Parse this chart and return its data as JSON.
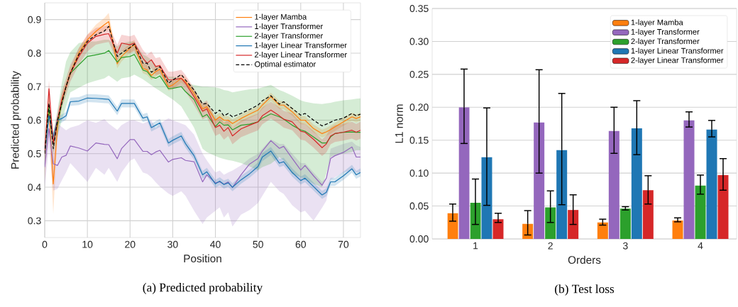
{
  "chart_data": [
    {
      "type": "line",
      "xlabel": "Position",
      "ylabel": "Predicted probability",
      "annotations": [
        "(a) Predicted probability"
      ],
      "x": [
        0,
        1,
        2,
        3,
        4,
        5,
        6,
        8,
        10,
        12,
        14,
        15,
        17,
        18,
        20,
        21,
        23,
        24,
        25,
        26,
        27,
        29,
        30,
        32,
        33,
        35,
        37,
        38,
        40,
        41,
        42,
        43,
        44,
        46,
        48,
        50,
        51,
        53,
        55,
        56,
        58,
        60,
        61,
        63,
        65,
        66,
        67,
        68,
        70,
        72,
        73,
        74
      ],
      "xlim": [
        0,
        74
      ],
      "xticks": [
        0,
        10,
        20,
        30,
        40,
        50,
        60,
        70
      ],
      "ylim": [
        0.25,
        0.95
      ],
      "yticks": [
        0.3,
        0.4,
        0.5,
        0.6,
        0.7,
        0.8,
        0.9
      ],
      "grid": true,
      "legend": "top right",
      "series": [
        {
          "name": "1-layer Mamba",
          "color": "#ff7f0e",
          "values": [
            0.5,
            0.64,
            0.41,
            0.58,
            0.66,
            0.7,
            0.74,
            0.8,
            0.84,
            0.865,
            0.885,
            0.894,
            0.768,
            0.79,
            0.815,
            0.826,
            0.755,
            0.75,
            0.733,
            0.745,
            0.752,
            0.7,
            0.705,
            0.725,
            0.715,
            0.68,
            0.634,
            0.64,
            0.6,
            0.61,
            0.6,
            0.6,
            0.59,
            0.605,
            0.618,
            0.63,
            0.645,
            0.67,
            0.645,
            0.645,
            0.625,
            0.6,
            0.6,
            0.575,
            0.56,
            0.565,
            0.572,
            0.58,
            0.595,
            0.61,
            0.605,
            0.61
          ],
          "lower": [
            0.42,
            0.6,
            0.32,
            0.55,
            0.64,
            0.685,
            0.725,
            0.785,
            0.825,
            0.85,
            0.865,
            0.87,
            0.755,
            0.775,
            0.8,
            0.81,
            0.74,
            0.735,
            0.72,
            0.73,
            0.738,
            0.688,
            0.692,
            0.712,
            0.702,
            0.668,
            0.622,
            0.628,
            0.588,
            0.598,
            0.588,
            0.588,
            0.578,
            0.593,
            0.606,
            0.618,
            0.633,
            0.658,
            0.633,
            0.633,
            0.613,
            0.588,
            0.588,
            0.563,
            0.548,
            0.553,
            0.56,
            0.568,
            0.583,
            0.598,
            0.593,
            0.598
          ],
          "upper": [
            0.56,
            0.68,
            0.5,
            0.61,
            0.68,
            0.715,
            0.755,
            0.815,
            0.855,
            0.885,
            0.905,
            0.92,
            0.785,
            0.805,
            0.83,
            0.84,
            0.77,
            0.765,
            0.746,
            0.76,
            0.766,
            0.712,
            0.718,
            0.738,
            0.728,
            0.692,
            0.646,
            0.652,
            0.612,
            0.622,
            0.612,
            0.612,
            0.602,
            0.617,
            0.63,
            0.642,
            0.657,
            0.682,
            0.657,
            0.657,
            0.637,
            0.612,
            0.612,
            0.587,
            0.572,
            0.577,
            0.584,
            0.592,
            0.607,
            0.622,
            0.617,
            0.622
          ]
        },
        {
          "name": "1-layer Transformer",
          "color": "#9467bd",
          "values": [
            0.46,
            0.575,
            0.47,
            0.465,
            0.49,
            0.495,
            0.523,
            0.517,
            0.508,
            0.532,
            0.528,
            0.527,
            0.485,
            0.515,
            0.542,
            0.542,
            0.507,
            0.507,
            0.497,
            0.505,
            0.51,
            0.475,
            0.483,
            0.488,
            0.48,
            0.476,
            0.416,
            0.437,
            0.413,
            0.416,
            0.409,
            0.416,
            0.399,
            0.437,
            0.469,
            0.486,
            0.508,
            0.539,
            0.516,
            0.522,
            0.486,
            0.451,
            0.465,
            0.434,
            0.406,
            0.427,
            0.486,
            0.494,
            0.504,
            0.52,
            0.49,
            0.49
          ],
          "lower": [
            0.4,
            0.52,
            0.39,
            0.395,
            0.42,
            0.444,
            0.472,
            0.444,
            0.416,
            0.458,
            0.437,
            0.458,
            0.416,
            0.444,
            0.479,
            0.486,
            0.444,
            0.44,
            0.43,
            0.415,
            0.402,
            0.381,
            0.374,
            0.388,
            0.374,
            0.33,
            0.29,
            0.31,
            0.33,
            0.34,
            0.31,
            0.325,
            0.283,
            0.318,
            0.332,
            0.353,
            0.374,
            0.416,
            0.388,
            0.38,
            0.346,
            0.325,
            0.33,
            0.3,
            0.339,
            0.36,
            0.423,
            0.43,
            0.444,
            0.451,
            0.444,
            0.444
          ],
          "upper": [
            0.5,
            0.62,
            0.55,
            0.59,
            0.58,
            0.57,
            0.578,
            0.585,
            0.6,
            0.592,
            0.603,
            0.59,
            0.571,
            0.585,
            0.6,
            0.6,
            0.59,
            0.595,
            0.6,
            0.575,
            0.59,
            0.606,
            0.6,
            0.59,
            0.585,
            0.557,
            0.5,
            0.48,
            0.444,
            0.45,
            0.437,
            0.444,
            0.45,
            0.465,
            0.486,
            0.5,
            0.515,
            0.543,
            0.529,
            0.529,
            0.5,
            0.472,
            0.472,
            0.444,
            0.416,
            0.43,
            0.515,
            0.52,
            0.529,
            0.536,
            0.525,
            0.52
          ]
        },
        {
          "name": "2-layer Transformer",
          "color": "#2ca02c",
          "values": [
            0.5,
            0.64,
            0.53,
            0.59,
            0.65,
            0.7,
            0.74,
            0.765,
            0.79,
            0.795,
            0.8,
            0.808,
            0.773,
            0.787,
            0.79,
            0.796,
            0.75,
            0.745,
            0.729,
            0.725,
            0.732,
            0.694,
            0.695,
            0.7,
            0.685,
            0.662,
            0.61,
            0.617,
            0.581,
            0.595,
            0.585,
            0.586,
            0.571,
            0.585,
            0.588,
            0.595,
            0.606,
            0.619,
            0.61,
            0.603,
            0.585,
            0.571,
            0.567,
            0.55,
            0.532,
            0.532,
            0.55,
            0.56,
            0.564,
            0.565,
            0.564,
            0.564
          ],
          "lower": [
            0.47,
            0.6,
            0.5,
            0.55,
            0.6,
            0.64,
            0.683,
            0.697,
            0.71,
            0.718,
            0.725,
            0.733,
            0.715,
            0.725,
            0.729,
            0.736,
            0.722,
            0.713,
            0.704,
            0.695,
            0.687,
            0.67,
            0.662,
            0.641,
            0.62,
            0.578,
            0.515,
            0.505,
            0.493,
            0.488,
            0.484,
            0.481,
            0.479,
            0.472,
            0.462,
            0.451,
            0.46,
            0.47,
            0.49,
            0.48,
            0.44,
            0.43,
            0.425,
            0.41,
            0.4,
            0.44,
            0.49,
            0.495,
            0.5,
            0.505,
            0.51,
            0.51
          ],
          "upper": [
            0.53,
            0.67,
            0.56,
            0.63,
            0.71,
            0.775,
            0.803,
            0.83,
            0.835,
            0.835,
            0.84,
            0.84,
            0.82,
            0.83,
            0.835,
            0.835,
            0.796,
            0.79,
            0.78,
            0.765,
            0.754,
            0.73,
            0.73,
            0.726,
            0.71,
            0.705,
            0.7,
            0.7,
            0.698,
            0.695,
            0.69,
            0.688,
            0.683,
            0.688,
            0.692,
            0.694,
            0.698,
            0.705,
            0.69,
            0.685,
            0.673,
            0.659,
            0.655,
            0.65,
            0.648,
            0.65,
            0.652,
            0.655,
            0.659,
            0.662,
            0.664,
            0.665
          ]
        },
        {
          "name": "1-layer Linear Transformer",
          "color": "#1f77b4",
          "values": [
            0.5,
            0.613,
            0.55,
            0.6,
            0.605,
            0.613,
            0.655,
            0.657,
            0.666,
            0.665,
            0.663,
            0.662,
            0.627,
            0.65,
            0.65,
            0.65,
            0.606,
            0.61,
            0.578,
            0.585,
            0.592,
            0.532,
            0.54,
            0.553,
            0.53,
            0.494,
            0.437,
            0.446,
            0.41,
            0.418,
            0.408,
            0.413,
            0.4,
            0.422,
            0.44,
            0.462,
            0.49,
            0.508,
            0.472,
            0.476,
            0.444,
            0.42,
            0.427,
            0.402,
            0.377,
            0.385,
            0.416,
            0.416,
            0.434,
            0.455,
            0.437,
            0.444
          ],
          "lower": [
            0.488,
            0.601,
            0.538,
            0.588,
            0.593,
            0.601,
            0.643,
            0.645,
            0.654,
            0.653,
            0.651,
            0.65,
            0.615,
            0.638,
            0.638,
            0.638,
            0.594,
            0.598,
            0.566,
            0.573,
            0.58,
            0.52,
            0.528,
            0.541,
            0.518,
            0.482,
            0.425,
            0.434,
            0.398,
            0.406,
            0.396,
            0.401,
            0.388,
            0.41,
            0.428,
            0.45,
            0.478,
            0.496,
            0.46,
            0.464,
            0.432,
            0.408,
            0.415,
            0.39,
            0.365,
            0.373,
            0.404,
            0.404,
            0.422,
            0.443,
            0.425,
            0.432
          ],
          "upper": [
            0.512,
            0.625,
            0.562,
            0.612,
            0.617,
            0.625,
            0.667,
            0.669,
            0.678,
            0.677,
            0.675,
            0.674,
            0.639,
            0.662,
            0.662,
            0.662,
            0.618,
            0.622,
            0.59,
            0.597,
            0.604,
            0.544,
            0.552,
            0.565,
            0.542,
            0.506,
            0.449,
            0.458,
            0.422,
            0.43,
            0.42,
            0.425,
            0.412,
            0.434,
            0.452,
            0.474,
            0.502,
            0.52,
            0.484,
            0.488,
            0.456,
            0.432,
            0.439,
            0.414,
            0.389,
            0.397,
            0.428,
            0.428,
            0.446,
            0.467,
            0.449,
            0.456
          ]
        },
        {
          "name": "2-layer Linear Transformer",
          "color": "#d62728",
          "values": [
            0.5,
            0.694,
            0.53,
            0.6,
            0.66,
            0.7,
            0.74,
            0.79,
            0.83,
            0.85,
            0.856,
            0.858,
            0.8,
            0.83,
            0.825,
            0.83,
            0.785,
            0.77,
            0.78,
            0.76,
            0.763,
            0.72,
            0.72,
            0.725,
            0.71,
            0.67,
            0.627,
            0.634,
            0.578,
            0.585,
            0.567,
            0.578,
            0.553,
            0.574,
            0.585,
            0.595,
            0.613,
            0.63,
            0.613,
            0.603,
            0.595,
            0.567,
            0.564,
            0.543,
            0.518,
            0.529,
            0.553,
            0.56,
            0.564,
            0.57,
            0.564,
            0.57
          ],
          "lower": [
            0.475,
            0.669,
            0.505,
            0.575,
            0.635,
            0.675,
            0.715,
            0.765,
            0.805,
            0.825,
            0.831,
            0.833,
            0.775,
            0.805,
            0.8,
            0.805,
            0.76,
            0.745,
            0.755,
            0.735,
            0.738,
            0.695,
            0.695,
            0.7,
            0.685,
            0.645,
            0.602,
            0.609,
            0.553,
            0.56,
            0.542,
            0.553,
            0.528,
            0.549,
            0.56,
            0.57,
            0.588,
            0.605,
            0.588,
            0.578,
            0.57,
            0.542,
            0.539,
            0.518,
            0.493,
            0.504,
            0.528,
            0.535,
            0.539,
            0.545,
            0.539,
            0.545
          ],
          "upper": [
            0.525,
            0.719,
            0.555,
            0.625,
            0.685,
            0.725,
            0.765,
            0.815,
            0.855,
            0.875,
            0.881,
            0.883,
            0.825,
            0.855,
            0.85,
            0.855,
            0.81,
            0.795,
            0.805,
            0.785,
            0.788,
            0.745,
            0.745,
            0.75,
            0.735,
            0.695,
            0.652,
            0.659,
            0.603,
            0.61,
            0.592,
            0.603,
            0.578,
            0.599,
            0.61,
            0.62,
            0.638,
            0.655,
            0.638,
            0.628,
            0.62,
            0.592,
            0.589,
            0.568,
            0.543,
            0.554,
            0.578,
            0.585,
            0.589,
            0.595,
            0.589,
            0.595
          ]
        },
        {
          "name": "Optimal estimator",
          "color": "#000000",
          "line_style": "dashed",
          "values": [
            0.5,
            0.65,
            0.515,
            0.6,
            0.65,
            0.7,
            0.74,
            0.796,
            0.835,
            0.855,
            0.866,
            0.88,
            0.79,
            0.8,
            0.817,
            0.827,
            0.77,
            0.77,
            0.743,
            0.75,
            0.76,
            0.71,
            0.72,
            0.736,
            0.72,
            0.69,
            0.648,
            0.65,
            0.62,
            0.63,
            0.613,
            0.62,
            0.61,
            0.62,
            0.632,
            0.645,
            0.658,
            0.673,
            0.648,
            0.655,
            0.635,
            0.615,
            0.62,
            0.6,
            0.583,
            0.588,
            0.594,
            0.6,
            0.606,
            0.62,
            0.613,
            0.618
          ]
        }
      ]
    },
    {
      "type": "bar",
      "xlabel": "Orders",
      "ylabel": "L1 norm",
      "annotations": [
        "(b) Test loss"
      ],
      "categories": [
        "1",
        "2",
        "3",
        "4"
      ],
      "ylim": [
        0,
        0.35
      ],
      "yticks": [
        {
          "value": 0,
          "label": "0.00"
        },
        {
          "value": 0.05,
          "label": "0.05"
        },
        {
          "value": 0.1,
          "label": "0.10"
        },
        {
          "value": 0.15,
          "label": "0.15"
        },
        {
          "value": 0.2,
          "label": "0.20"
        },
        {
          "value": 0.25,
          "label": "0.25"
        },
        {
          "value": 0.3,
          "label": "0.30"
        },
        {
          "value": 0.35,
          "label": "0.35"
        }
      ],
      "grid": "y",
      "legend": "top right",
      "series": [
        {
          "name": "1-layer Mamba",
          "color": "#ff7f0e",
          "values": [
            0.039,
            0.023,
            0.025,
            0.028
          ],
          "errors": [
            [
              0.027,
              0.053
            ],
            [
              0.006,
              0.043
            ],
            [
              0.021,
              0.03
            ],
            [
              0.026,
              0.032
            ]
          ]
        },
        {
          "name": "1-layer Transformer",
          "color": "#9467bd",
          "values": [
            0.2,
            0.177,
            0.164,
            0.18
          ],
          "errors": [
            [
              0.145,
              0.258
            ],
            [
              0.1,
              0.257
            ],
            [
              0.13,
              0.2
            ],
            [
              0.17,
              0.193
            ]
          ]
        },
        {
          "name": "2-layer Transformer",
          "color": "#2ca02c",
          "values": [
            0.055,
            0.048,
            0.046,
            0.081
          ],
          "errors": [
            [
              0.022,
              0.091
            ],
            [
              0.025,
              0.073
            ],
            [
              0.044,
              0.049
            ],
            [
              0.068,
              0.097
            ]
          ]
        },
        {
          "name": "1-layer Linear Transformer",
          "color": "#1f77b4",
          "values": [
            0.124,
            0.135,
            0.168,
            0.166
          ],
          "errors": [
            [
              0.051,
              0.199
            ],
            [
              0.052,
              0.221
            ],
            [
              0.128,
              0.21
            ],
            [
              0.155,
              0.18
            ]
          ]
        },
        {
          "name": "2-layer Linear Transformer",
          "color": "#d62728",
          "values": [
            0.03,
            0.044,
            0.074,
            0.097
          ],
          "errors": [
            [
              0.025,
              0.039
            ],
            [
              0.022,
              0.067
            ],
            [
              0.053,
              0.096
            ],
            [
              0.074,
              0.122
            ]
          ]
        }
      ]
    }
  ]
}
